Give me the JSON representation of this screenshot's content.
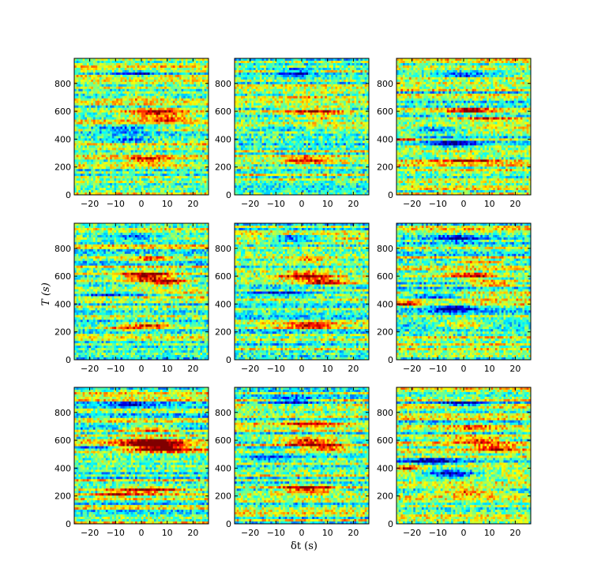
{
  "chart_data": {
    "type": "heatmap",
    "layout": "3x3 grid of panels",
    "xlabel": "δt (s)",
    "ylabel": "T (s)",
    "xlim": [
      -26,
      26
    ],
    "ylim": [
      0,
      980
    ],
    "xticks": [
      "−20",
      "−10",
      "0",
      "10",
      "20"
    ],
    "xtick_values": [
      -20,
      -10,
      0,
      10,
      20
    ],
    "yticks": [
      "0",
      "200",
      "400",
      "600",
      "800"
    ],
    "ytick_values": [
      0,
      200,
      400,
      600,
      800
    ],
    "colormap": "jet",
    "grid": false,
    "panels": [
      {
        "row": 0,
        "col": 0,
        "features": [
          {
            "t": 590,
            "dt": 6,
            "amp": 0.9,
            "w": 8,
            "h": 22
          },
          {
            "t": 545,
            "dt": 10,
            "amp": 0.6,
            "w": 7,
            "h": 15
          },
          {
            "t": 250,
            "dt": 3,
            "amp": 0.8,
            "w": 6,
            "h": 16
          },
          {
            "t": 700,
            "dt": 0,
            "amp": 0.4,
            "w": 6,
            "h": 14
          },
          {
            "t": 870,
            "dt": -2,
            "amp": -0.7,
            "w": 6,
            "h": 16
          },
          {
            "t": 470,
            "dt": -8,
            "amp": -0.6,
            "w": 8,
            "h": 16
          },
          {
            "t": 390,
            "dt": -6,
            "amp": -0.5,
            "w": 7,
            "h": 16
          }
        ]
      },
      {
        "row": 0,
        "col": 1,
        "features": [
          {
            "t": 600,
            "dt": 5,
            "amp": 0.7,
            "w": 8,
            "h": 18
          },
          {
            "t": 555,
            "dt": 8,
            "amp": 0.4,
            "w": 7,
            "h": 14
          },
          {
            "t": 250,
            "dt": 3,
            "amp": 0.8,
            "w": 7,
            "h": 16
          },
          {
            "t": 710,
            "dt": 2,
            "amp": 0.4,
            "w": 5,
            "h": 12
          },
          {
            "t": 880,
            "dt": -2,
            "amp": -0.8,
            "w": 5,
            "h": 18
          },
          {
            "t": 480,
            "dt": -8,
            "amp": -0.5,
            "w": 8,
            "h": 14
          }
        ]
      },
      {
        "row": 0,
        "col": 2,
        "features": [
          {
            "t": 605,
            "dt": 2,
            "amp": 0.8,
            "w": 6,
            "h": 14
          },
          {
            "t": 545,
            "dt": 10,
            "amp": 0.6,
            "w": 7,
            "h": 14
          },
          {
            "t": 250,
            "dt": 2,
            "amp": 0.6,
            "w": 8,
            "h": 14
          },
          {
            "t": 370,
            "dt": -4,
            "amp": -0.9,
            "w": 6,
            "h": 18
          },
          {
            "t": 470,
            "dt": -10,
            "amp": -0.7,
            "w": 7,
            "h": 18
          },
          {
            "t": 860,
            "dt": 0,
            "amp": -0.6,
            "w": 7,
            "h": 14
          },
          {
            "t": 400,
            "dt": -22,
            "amp": 0.7,
            "w": 3,
            "h": 10
          }
        ]
      },
      {
        "row": 1,
        "col": 0,
        "features": [
          {
            "t": 600,
            "dt": 2,
            "amp": 1.1,
            "w": 7,
            "h": 22
          },
          {
            "t": 555,
            "dt": 10,
            "amp": 0.9,
            "w": 6,
            "h": 16
          },
          {
            "t": 720,
            "dt": 3,
            "amp": 0.6,
            "w": 6,
            "h": 14
          },
          {
            "t": 245,
            "dt": 3,
            "amp": 0.8,
            "w": 7,
            "h": 16
          },
          {
            "t": 220,
            "dt": -8,
            "amp": 0.6,
            "w": 4,
            "h": 10
          },
          {
            "t": 880,
            "dt": -4,
            "amp": -0.6,
            "w": 6,
            "h": 14
          },
          {
            "t": 470,
            "dt": -12,
            "amp": -0.6,
            "w": 8,
            "h": 16
          }
        ]
      },
      {
        "row": 1,
        "col": 1,
        "features": [
          {
            "t": 600,
            "dt": 2,
            "amp": 1.0,
            "w": 7,
            "h": 20
          },
          {
            "t": 555,
            "dt": 10,
            "amp": 0.8,
            "w": 6,
            "h": 14
          },
          {
            "t": 720,
            "dt": 3,
            "amp": 0.6,
            "w": 6,
            "h": 14
          },
          {
            "t": 245,
            "dt": 3,
            "amp": 0.9,
            "w": 8,
            "h": 16
          },
          {
            "t": 870,
            "dt": -3,
            "amp": -0.8,
            "w": 7,
            "h": 18
          },
          {
            "t": 480,
            "dt": -10,
            "amp": -0.6,
            "w": 8,
            "h": 14
          }
        ]
      },
      {
        "row": 1,
        "col": 2,
        "features": [
          {
            "t": 605,
            "dt": 3,
            "amp": 0.9,
            "w": 7,
            "h": 14
          },
          {
            "t": 550,
            "dt": 12,
            "amp": 0.8,
            "w": 7,
            "h": 14
          },
          {
            "t": 700,
            "dt": 6,
            "amp": 0.6,
            "w": 6,
            "h": 14
          },
          {
            "t": 250,
            "dt": 0,
            "amp": 0.7,
            "w": 7,
            "h": 14
          },
          {
            "t": 370,
            "dt": -4,
            "amp": -1.0,
            "w": 6,
            "h": 18
          },
          {
            "t": 460,
            "dt": -12,
            "amp": -0.7,
            "w": 8,
            "h": 18
          },
          {
            "t": 870,
            "dt": -3,
            "amp": -0.8,
            "w": 6,
            "h": 16
          },
          {
            "t": 400,
            "dt": -22,
            "amp": 0.8,
            "w": 3,
            "h": 10
          }
        ]
      },
      {
        "row": 2,
        "col": 0,
        "features": [
          {
            "t": 580,
            "dt": 4,
            "amp": 1.2,
            "w": 8,
            "h": 26
          },
          {
            "t": 540,
            "dt": 10,
            "amp": 0.9,
            "w": 7,
            "h": 16
          },
          {
            "t": 680,
            "dt": 2,
            "amp": 0.7,
            "w": 7,
            "h": 16
          },
          {
            "t": 240,
            "dt": 2,
            "amp": 0.9,
            "w": 9,
            "h": 18
          },
          {
            "t": 210,
            "dt": -10,
            "amp": 0.6,
            "w": 5,
            "h": 12
          },
          {
            "t": 860,
            "dt": -4,
            "amp": -0.6,
            "w": 6,
            "h": 14
          },
          {
            "t": 540,
            "dt": -18,
            "amp": -0.7,
            "w": 6,
            "h": 12
          }
        ]
      },
      {
        "row": 2,
        "col": 1,
        "features": [
          {
            "t": 590,
            "dt": 3,
            "amp": 1.0,
            "w": 8,
            "h": 20
          },
          {
            "t": 545,
            "dt": 10,
            "amp": 0.9,
            "w": 7,
            "h": 14
          },
          {
            "t": 720,
            "dt": 3,
            "amp": 0.7,
            "w": 6,
            "h": 14
          },
          {
            "t": 250,
            "dt": 2,
            "amp": 1.0,
            "w": 8,
            "h": 18
          },
          {
            "t": 880,
            "dt": -3,
            "amp": -0.8,
            "w": 6,
            "h": 18
          },
          {
            "t": 470,
            "dt": -12,
            "amp": -0.5,
            "w": 8,
            "h": 14
          }
        ]
      },
      {
        "row": 2,
        "col": 2,
        "features": [
          {
            "t": 600,
            "dt": 5,
            "amp": 0.9,
            "w": 7,
            "h": 14
          },
          {
            "t": 545,
            "dt": 12,
            "amp": 0.9,
            "w": 7,
            "h": 14
          },
          {
            "t": 690,
            "dt": 4,
            "amp": 0.6,
            "w": 6,
            "h": 14
          },
          {
            "t": 230,
            "dt": 2,
            "amp": 0.8,
            "w": 8,
            "h": 16
          },
          {
            "t": 360,
            "dt": -5,
            "amp": -1.0,
            "w": 7,
            "h": 20
          },
          {
            "t": 450,
            "dt": -12,
            "amp": -0.8,
            "w": 8,
            "h": 18
          },
          {
            "t": 860,
            "dt": 0,
            "amp": -0.8,
            "w": 7,
            "h": 16
          },
          {
            "t": 400,
            "dt": -22,
            "amp": 0.8,
            "w": 3,
            "h": 10
          }
        ]
      }
    ]
  }
}
